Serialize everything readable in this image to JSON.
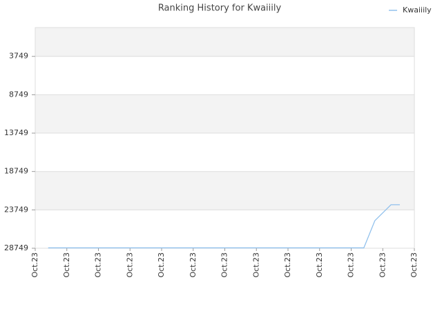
{
  "chart_data": {
    "type": "line",
    "title": "Ranking History for Kwaiiily",
    "x": [
      0.41,
      10.4,
      10.75,
      11.26,
      11.54
    ],
    "series": [
      {
        "name": "Kwaiiily",
        "color": "#90c0ec",
        "values": [
          28700,
          28700,
          25150,
          23080,
          23080
        ]
      }
    ],
    "xlim": [
      0,
      12
    ],
    "xticks": [
      {
        "value": 0,
        "label": "Oct.23"
      },
      {
        "value": 1,
        "label": "Oct.23"
      },
      {
        "value": 2,
        "label": "Oct.23"
      },
      {
        "value": 3,
        "label": "Oct.23"
      },
      {
        "value": 4,
        "label": "Oct.23"
      },
      {
        "value": 5,
        "label": "Oct.23"
      },
      {
        "value": 6,
        "label": "Oct.23"
      },
      {
        "value": 7,
        "label": "Oct.23"
      },
      {
        "value": 8,
        "label": "Oct.23"
      },
      {
        "value": 9,
        "label": "Oct.23"
      },
      {
        "value": 10,
        "label": "Oct.23"
      },
      {
        "value": 11,
        "label": "Oct.23"
      },
      {
        "value": 12,
        "label": "Oct.23"
      }
    ],
    "ylim": [
      28749,
      0
    ],
    "yticks": [
      3749,
      8749,
      13749,
      18749,
      23749,
      28749
    ],
    "grid": true,
    "legend": "top-right"
  }
}
